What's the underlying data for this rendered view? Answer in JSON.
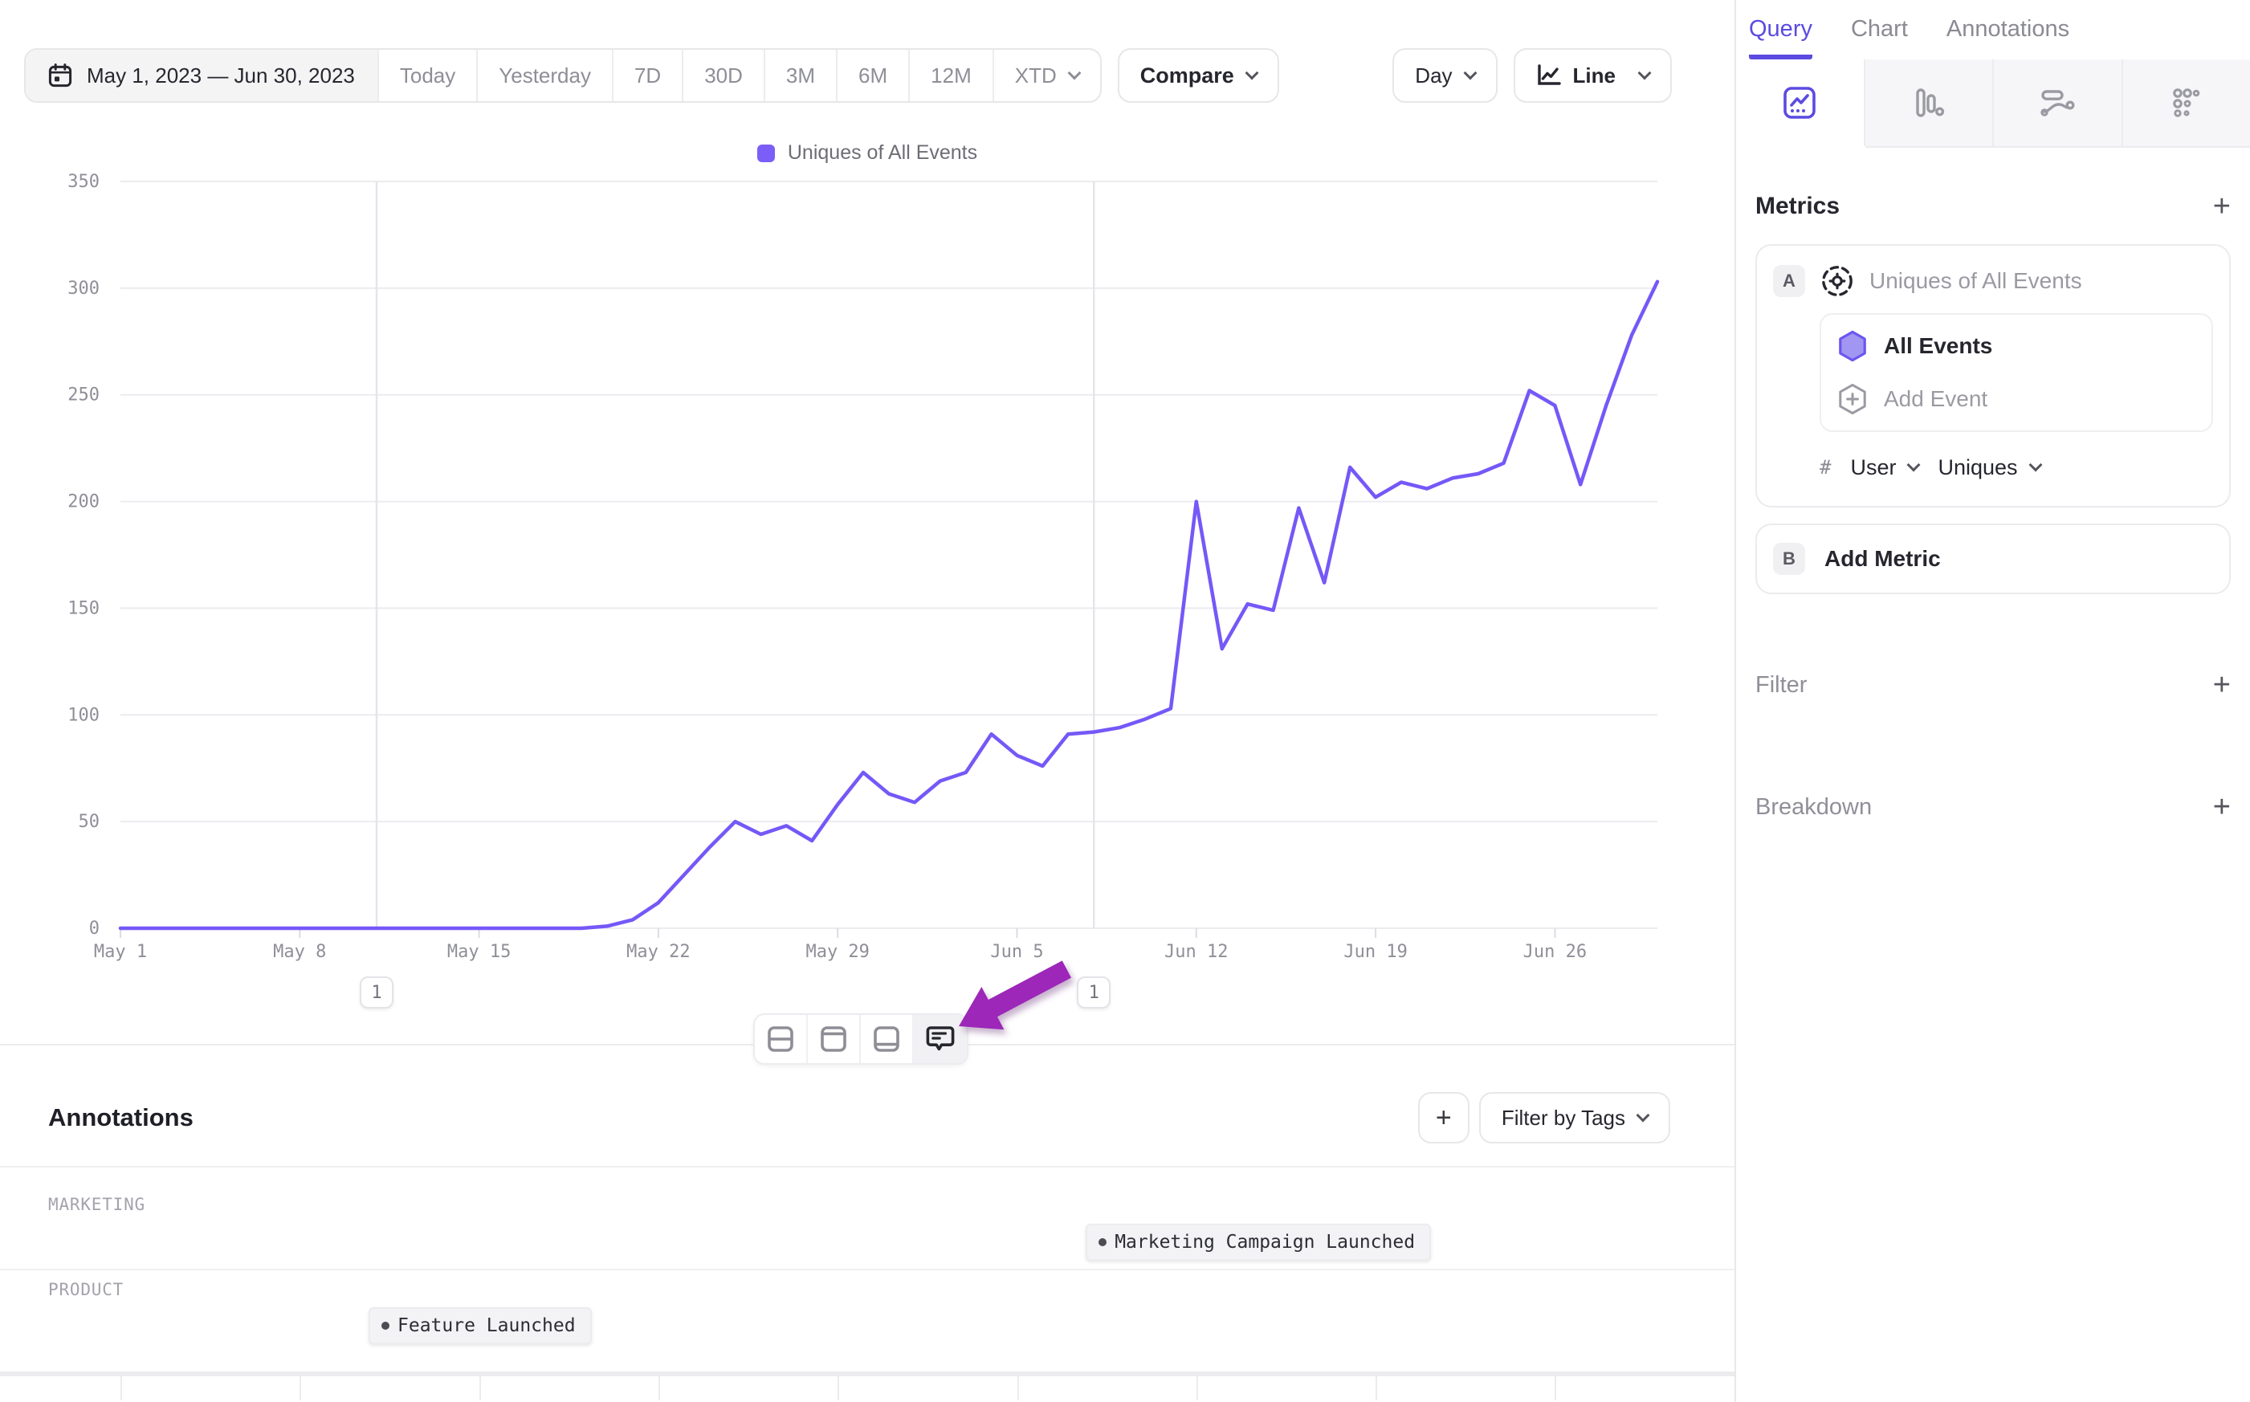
{
  "colors": {
    "accent": "#5b4be0",
    "line": "#7558f7",
    "legend_swatch": "#7b5ef8",
    "arrow": "#9c27b8",
    "hexagon_fill": "#a197f2",
    "hexagon_stroke": "#6c56f0",
    "gridline": "#ececf0",
    "annotation_line": "#e4e4ea"
  },
  "toolbar": {
    "date_range": "May 1, 2023 — Jun 30, 2023",
    "presets": [
      "Today",
      "Yesterday",
      "7D",
      "30D",
      "3M",
      "6M",
      "12M"
    ],
    "xtd": "XTD",
    "compare": "Compare",
    "granularity": "Day",
    "chart_type": "Line"
  },
  "legend": {
    "label": "Uniques of All Events"
  },
  "chart_data": {
    "type": "line",
    "series_name": "Uniques of All Events",
    "x_start": "May 1",
    "x_end": "Jun 30",
    "x_tick_labels": [
      "May 1",
      "May 8",
      "May 15",
      "May 22",
      "May 29",
      "Jun 5",
      "Jun 12",
      "Jun 19",
      "Jun 26"
    ],
    "x_tick_interval_days": 7,
    "y_ticks": [
      0,
      50,
      100,
      150,
      200,
      250,
      300,
      350
    ],
    "ylim": [
      0,
      350
    ],
    "grid": "horizontal",
    "legend_position": "top-center",
    "values": [
      0,
      0,
      0,
      0,
      0,
      0,
      0,
      0,
      0,
      0,
      0,
      0,
      0,
      0,
      0,
      0,
      0,
      0,
      0,
      1,
      4,
      12,
      25,
      38,
      50,
      44,
      48,
      41,
      58,
      73,
      63,
      59,
      69,
      73,
      91,
      81,
      76,
      91,
      92,
      94,
      98,
      103,
      200,
      131,
      152,
      149,
      197,
      162,
      216,
      202,
      209,
      206,
      211,
      213,
      218,
      252,
      245,
      208,
      245,
      278,
      303
    ]
  },
  "chart_markers": [
    {
      "day_index": 10,
      "label": "1"
    },
    {
      "day_index": 38,
      "label": "1"
    }
  ],
  "chart_tools": {
    "items": [
      {
        "name": "split-rows-icon",
        "active": false
      },
      {
        "name": "panel-top-icon",
        "active": false
      },
      {
        "name": "panel-bottom-icon",
        "active": false
      },
      {
        "name": "comment-icon",
        "active": true
      }
    ]
  },
  "annotations_panel": {
    "title": "Annotations",
    "add_label": "+",
    "filter_by_tags": "Filter by Tags",
    "groups": [
      {
        "name": "MARKETING",
        "items": [
          {
            "label": "Marketing Campaign Launched",
            "day_index": 38
          }
        ]
      },
      {
        "name": "PRODUCT",
        "items": [
          {
            "label": "Feature Launched",
            "day_index": 10
          }
        ]
      }
    ]
  },
  "sidebar": {
    "tabs": [
      {
        "label": "Query",
        "active": true
      },
      {
        "label": "Chart",
        "active": false
      },
      {
        "label": "Annotations",
        "active": false
      }
    ],
    "view_icons": [
      "insights-icon",
      "funnels-icon",
      "flows-icon",
      "retention-icon"
    ],
    "metrics": {
      "title": "Metrics",
      "add_label": "+",
      "metric_a": {
        "badge": "A",
        "name_placeholder": "Uniques of All Events",
        "event": "All Events",
        "add_event": "Add Event",
        "count_symbol": "#",
        "entity": "User",
        "aggregation": "Uniques"
      },
      "metric_b": {
        "badge": "B",
        "label": "Add Metric"
      }
    },
    "filter": {
      "label": "Filter",
      "add_label": "+"
    },
    "breakdown": {
      "label": "Breakdown",
      "add_label": "+"
    }
  }
}
